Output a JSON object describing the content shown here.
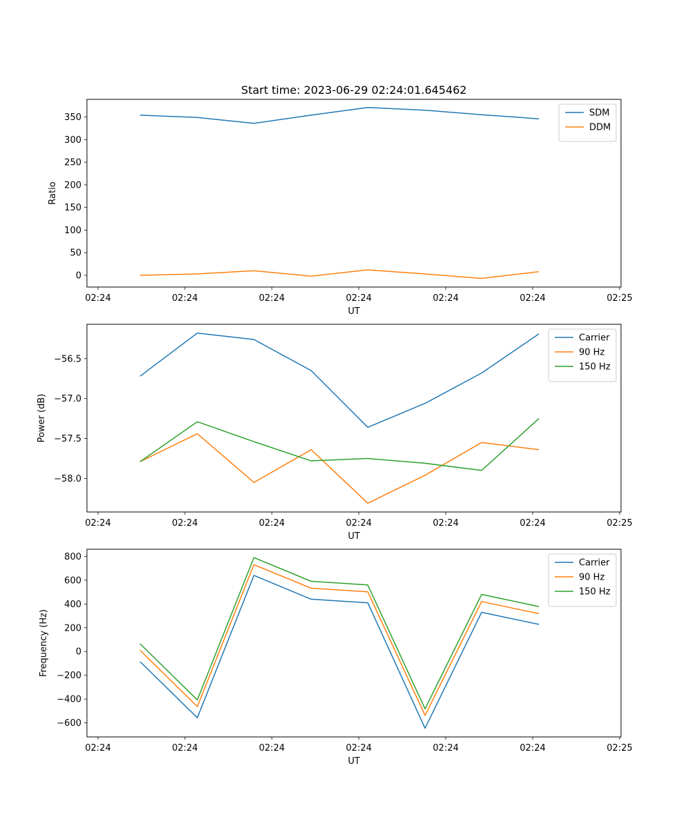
{
  "figure": {
    "title": "Start time: 2023-06-29 02:24:01.645462"
  },
  "chart_data": [
    {
      "type": "line",
      "title": "Start time: 2023-06-29 02:24:01.645462",
      "xlabel": "UT",
      "ylabel": "Ratio",
      "x_tick_labels": [
        "02:24",
        "02:24",
        "02:24",
        "02:24",
        "02:24",
        "02:24",
        "02:24",
        "02:25"
      ],
      "y_ticks": [
        0,
        50,
        100,
        150,
        200,
        250,
        300,
        350
      ],
      "ylim": [
        -26,
        389
      ],
      "legend": "top-right",
      "series": [
        {
          "name": "SDM",
          "color": "#1f77b4",
          "values": [
            354,
            349,
            336,
            354,
            371,
            365,
            355,
            346
          ]
        },
        {
          "name": "DDM",
          "color": "#ff7f0e",
          "values": [
            0,
            3,
            10,
            -2,
            12,
            3,
            -7,
            8
          ]
        }
      ]
    },
    {
      "type": "line",
      "title": "",
      "xlabel": "UT",
      "ylabel": "Power (dB)",
      "x_tick_labels": [
        "02:24",
        "02:24",
        "02:24",
        "02:24",
        "02:24",
        "02:24",
        "02:24",
        "02:25"
      ],
      "y_ticks": [
        -58.0,
        -57.5,
        -57.0,
        -56.5
      ],
      "y_tick_labels": [
        "−58.0",
        "−57.5",
        "−57.0",
        "−56.5"
      ],
      "ylim": [
        -58.42,
        -56.07
      ],
      "legend": "top-right",
      "series": [
        {
          "name": "Carrier",
          "color": "#1f77b4",
          "values": [
            -56.72,
            -56.18,
            -56.26,
            -56.65,
            -57.36,
            -57.06,
            -56.68,
            -56.19
          ]
        },
        {
          "name": "90 Hz",
          "color": "#ff7f0e",
          "values": [
            -57.79,
            -57.44,
            -58.05,
            -57.64,
            -58.31,
            -57.96,
            -57.55,
            -57.64
          ]
        },
        {
          "name": "150 Hz",
          "color": "#2ca02c",
          "values": [
            -57.79,
            -57.29,
            -57.54,
            -57.78,
            -57.75,
            -57.81,
            -57.9,
            -57.25
          ]
        }
      ]
    },
    {
      "type": "line",
      "title": "",
      "xlabel": "UT",
      "ylabel": "Frequency (Hz)",
      "x_tick_labels": [
        "02:24",
        "02:24",
        "02:24",
        "02:24",
        "02:24",
        "02:24",
        "02:24",
        "02:25"
      ],
      "y_ticks": [
        -600,
        -400,
        -200,
        0,
        200,
        400,
        600,
        800
      ],
      "y_tick_labels": [
        "−600",
        "−400",
        "−200",
        "0",
        "200",
        "400",
        "600",
        "800"
      ],
      "ylim": [
        -718,
        860
      ],
      "legend": "top-right",
      "series": [
        {
          "name": "Carrier",
          "color": "#1f77b4",
          "values": [
            -85,
            -557,
            640,
            440,
            410,
            -645,
            330,
            228
          ]
        },
        {
          "name": "90 Hz",
          "color": "#ff7f0e",
          "values": [
            10,
            -463,
            730,
            532,
            502,
            -537,
            420,
            318
          ]
        },
        {
          "name": "150 Hz",
          "color": "#2ca02c",
          "values": [
            65,
            -407,
            790,
            590,
            560,
            -482,
            480,
            378
          ]
        }
      ]
    }
  ]
}
